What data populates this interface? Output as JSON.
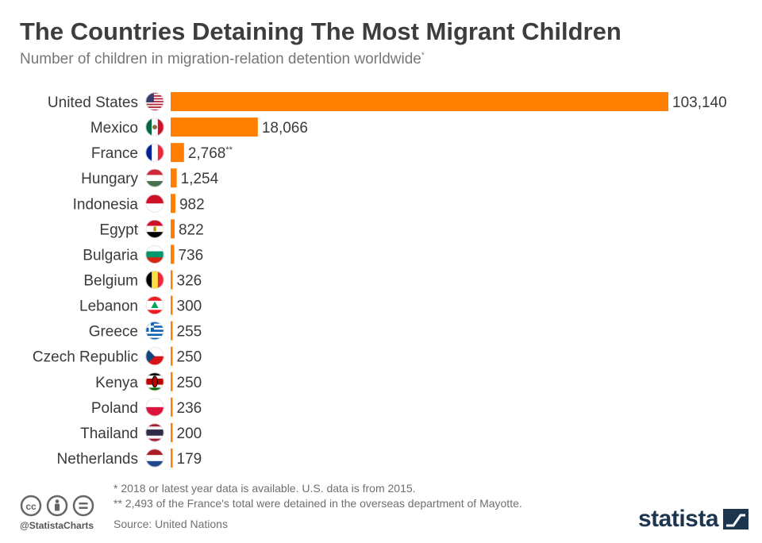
{
  "header": {
    "title": "The Countries Detaining The Most Migrant Children",
    "subtitle": "Number of children in migration-relation detention worldwide",
    "subtitle_mark": "*"
  },
  "colors": {
    "bar": "#ff8000",
    "label": "#3a3a3a",
    "muted": "#6f6f6f",
    "brand": "#1e3550"
  },
  "chart_data": {
    "type": "bar",
    "orientation": "horizontal",
    "categories": [
      "United States",
      "Mexico",
      "France",
      "Hungary",
      "Indonesia",
      "Egypt",
      "Bulgaria",
      "Belgium",
      "Lebanon",
      "Greece",
      "Czech Republic",
      "Kenya",
      "Poland",
      "Thailand",
      "Netherlands"
    ],
    "values": [
      103140,
      18066,
      2768,
      1254,
      982,
      822,
      736,
      326,
      300,
      255,
      250,
      250,
      236,
      200,
      179
    ],
    "value_labels": [
      "103,140",
      "18,066",
      "2,768",
      "1,254",
      "982",
      "822",
      "736",
      "326",
      "300",
      "255",
      "250",
      "250",
      "236",
      "200",
      "179"
    ],
    "value_marks": [
      "",
      "",
      "**",
      "",
      "",
      "",
      "",
      "",
      "",
      "",
      "",
      "",
      "",
      "",
      ""
    ],
    "flag_icons": [
      "us-flag-icon",
      "mexico-flag-icon",
      "france-flag-icon",
      "hungary-flag-icon",
      "indonesia-flag-icon",
      "egypt-flag-icon",
      "bulgaria-flag-icon",
      "belgium-flag-icon",
      "lebanon-flag-icon",
      "greece-flag-icon",
      "czech-republic-flag-icon",
      "kenya-flag-icon",
      "poland-flag-icon",
      "thailand-flag-icon",
      "netherlands-flag-icon"
    ],
    "xlim": [
      0,
      103140
    ],
    "grid": false,
    "legend": "none"
  },
  "footer": {
    "note1": "*   2018 or latest year data is available. U.S. data is from 2015.",
    "note2": "** 2,493 of the France's total were detained in the overseas department of Mayotte.",
    "source": "Source: United Nations",
    "handle": "@StatistaCharts",
    "brand": "statista",
    "license_icons": [
      "cc-icon",
      "attribution-icon",
      "no-derivatives-icon"
    ]
  }
}
